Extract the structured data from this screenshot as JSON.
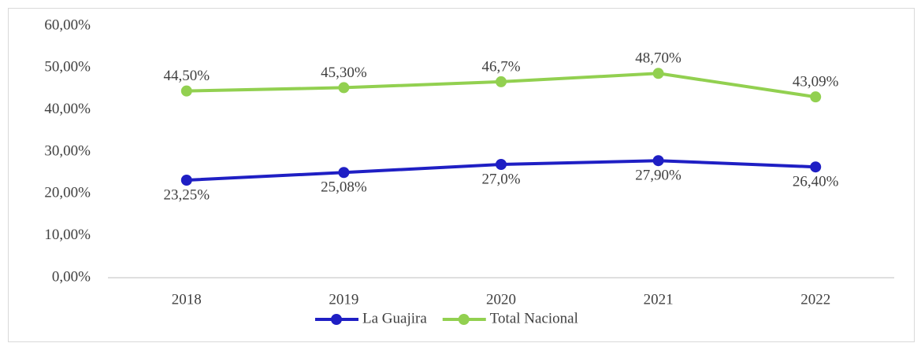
{
  "chart_data": {
    "type": "line",
    "categories": [
      "2018",
      "2019",
      "2020",
      "2021",
      "2022"
    ],
    "series": [
      {
        "name": "La Guajira",
        "color": "#1f1fc4",
        "values": [
          23.25,
          25.08,
          27.0,
          27.9,
          26.4
        ],
        "value_labels": [
          "23,25%",
          "25,08%",
          "27,0%",
          "27,90%",
          "26,40%"
        ]
      },
      {
        "name": "Total Nacional",
        "color": "#92d050",
        "values": [
          44.5,
          45.3,
          46.7,
          48.7,
          43.09
        ],
        "value_labels": [
          "44,50%",
          "45,30%",
          "46,7%",
          "48,70%",
          "43,09%"
        ]
      }
    ],
    "ylim": [
      0,
      60
    ],
    "yticks": [
      {
        "value": 0,
        "label": "0,00%"
      },
      {
        "value": 10,
        "label": "10,00%"
      },
      {
        "value": 20,
        "label": "20,00%"
      },
      {
        "value": 30,
        "label": "30,00%"
      },
      {
        "value": 40,
        "label": "40,00%"
      },
      {
        "value": 50,
        "label": "50,00%"
      },
      {
        "value": 60,
        "label": "60,00%"
      }
    ],
    "grid": false,
    "legend": "bottom"
  }
}
